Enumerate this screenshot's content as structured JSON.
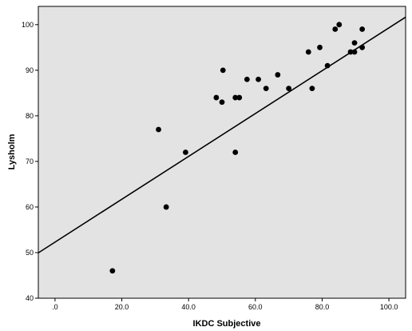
{
  "chart_data": {
    "type": "scatter",
    "title": "",
    "xlabel": "IKDC Subjective",
    "ylabel": "Lysholm",
    "xlim": [
      -5,
      105
    ],
    "ylim": [
      40,
      104
    ],
    "x_ticks": [
      0,
      20,
      40,
      60,
      80,
      100
    ],
    "x_tick_labels": [
      ".0",
      "20.0",
      "40.0",
      "60.0",
      "80.0",
      "100.0"
    ],
    "y_ticks": [
      40,
      50,
      60,
      70,
      80,
      90,
      100
    ],
    "y_tick_labels": [
      "40",
      "50",
      "60",
      "70",
      "80",
      "90",
      "100"
    ],
    "grid": false,
    "legend": "none",
    "colors": {
      "plot_background": "#e3e3e3",
      "points": "#000000",
      "fit_line": "#000000"
    },
    "series": [
      {
        "points": [
          [
            17.2,
            46
          ],
          [
            31.0,
            77
          ],
          [
            33.3,
            60
          ],
          [
            39.1,
            72
          ],
          [
            48.3,
            84
          ],
          [
            50.0,
            83
          ],
          [
            50.3,
            90
          ],
          [
            54.0,
            84
          ],
          [
            54.0,
            72
          ],
          [
            55.2,
            84
          ],
          [
            57.5,
            88
          ],
          [
            60.9,
            88
          ],
          [
            63.2,
            86
          ],
          [
            66.7,
            89
          ],
          [
            70.0,
            86
          ],
          [
            75.9,
            94
          ],
          [
            77.0,
            86
          ],
          [
            79.3,
            95
          ],
          [
            81.6,
            91
          ],
          [
            83.9,
            99
          ],
          [
            85.1,
            100
          ],
          [
            88.5,
            94
          ],
          [
            89.7,
            96
          ],
          [
            89.7,
            94
          ],
          [
            92.0,
            99
          ],
          [
            92.0,
            95
          ]
        ]
      }
    ],
    "fit_line": {
      "intercept": 52.3,
      "slope": 0.47
    }
  }
}
